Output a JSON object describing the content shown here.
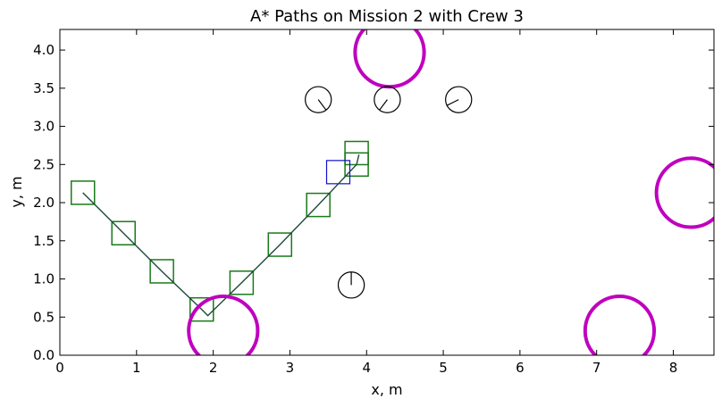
{
  "chart_data": {
    "type": "line",
    "title": "A* Paths on Mission 2 with Crew 3",
    "xlabel": "x, m",
    "ylabel": "y, m",
    "xlim": [
      0,
      8.53
    ],
    "ylim": [
      0,
      4.27
    ],
    "xticks": [
      "0",
      "1",
      "2",
      "3",
      "4",
      "5",
      "6",
      "7",
      "8"
    ],
    "yticks": [
      "0.0",
      "0.5",
      "1.0",
      "1.5",
      "2.0",
      "2.5",
      "3.0",
      "3.5",
      "4.0"
    ],
    "grid": false,
    "series": [
      {
        "color": "#1c4a3a",
        "points": [
          [
            0.3,
            2.13
          ],
          [
            0.83,
            1.6
          ],
          [
            1.33,
            1.1
          ],
          [
            1.85,
            0.6
          ],
          [
            1.93,
            0.52
          ],
          [
            2.37,
            0.95
          ],
          [
            2.87,
            1.45
          ],
          [
            3.37,
            1.97
          ],
          [
            3.87,
            2.5
          ],
          [
            3.9,
            2.63
          ]
        ]
      }
    ],
    "green_squares": [
      [
        0.3,
        2.13
      ],
      [
        0.83,
        1.6
      ],
      [
        1.33,
        1.1
      ],
      [
        1.85,
        0.6
      ],
      [
        2.37,
        0.95
      ],
      [
        2.87,
        1.45
      ],
      [
        3.37,
        1.97
      ],
      [
        3.87,
        2.5
      ],
      [
        3.87,
        2.65
      ]
    ],
    "blue_squares": [
      [
        3.63,
        2.4
      ]
    ],
    "obstacles": [
      {
        "x": 2.13,
        "y": 0.32,
        "r": 0.45
      },
      {
        "x": 4.3,
        "y": 3.97,
        "r": 0.45
      },
      {
        "x": 8.23,
        "y": 2.13,
        "r": 0.45
      },
      {
        "x": 7.3,
        "y": 0.32,
        "r": 0.45
      }
    ],
    "crew": [
      {
        "x": 3.37,
        "y": 3.35,
        "r": 0.17,
        "heading": [
          0.6,
          -0.8
        ]
      },
      {
        "x": 4.27,
        "y": 3.35,
        "r": 0.17,
        "heading": [
          -0.6,
          -0.8
        ]
      },
      {
        "x": 5.2,
        "y": 3.35,
        "r": 0.17,
        "heading": [
          -0.9,
          -0.45
        ]
      },
      {
        "x": 3.8,
        "y": 0.92,
        "r": 0.17,
        "heading": [
          0,
          1
        ]
      }
    ],
    "colors": {
      "path": "#1c4a3a",
      "square_green": "#1a7a1a",
      "square_blue": "#1010cc",
      "obstacle": "#bf00bf",
      "crew": "#000000"
    }
  }
}
